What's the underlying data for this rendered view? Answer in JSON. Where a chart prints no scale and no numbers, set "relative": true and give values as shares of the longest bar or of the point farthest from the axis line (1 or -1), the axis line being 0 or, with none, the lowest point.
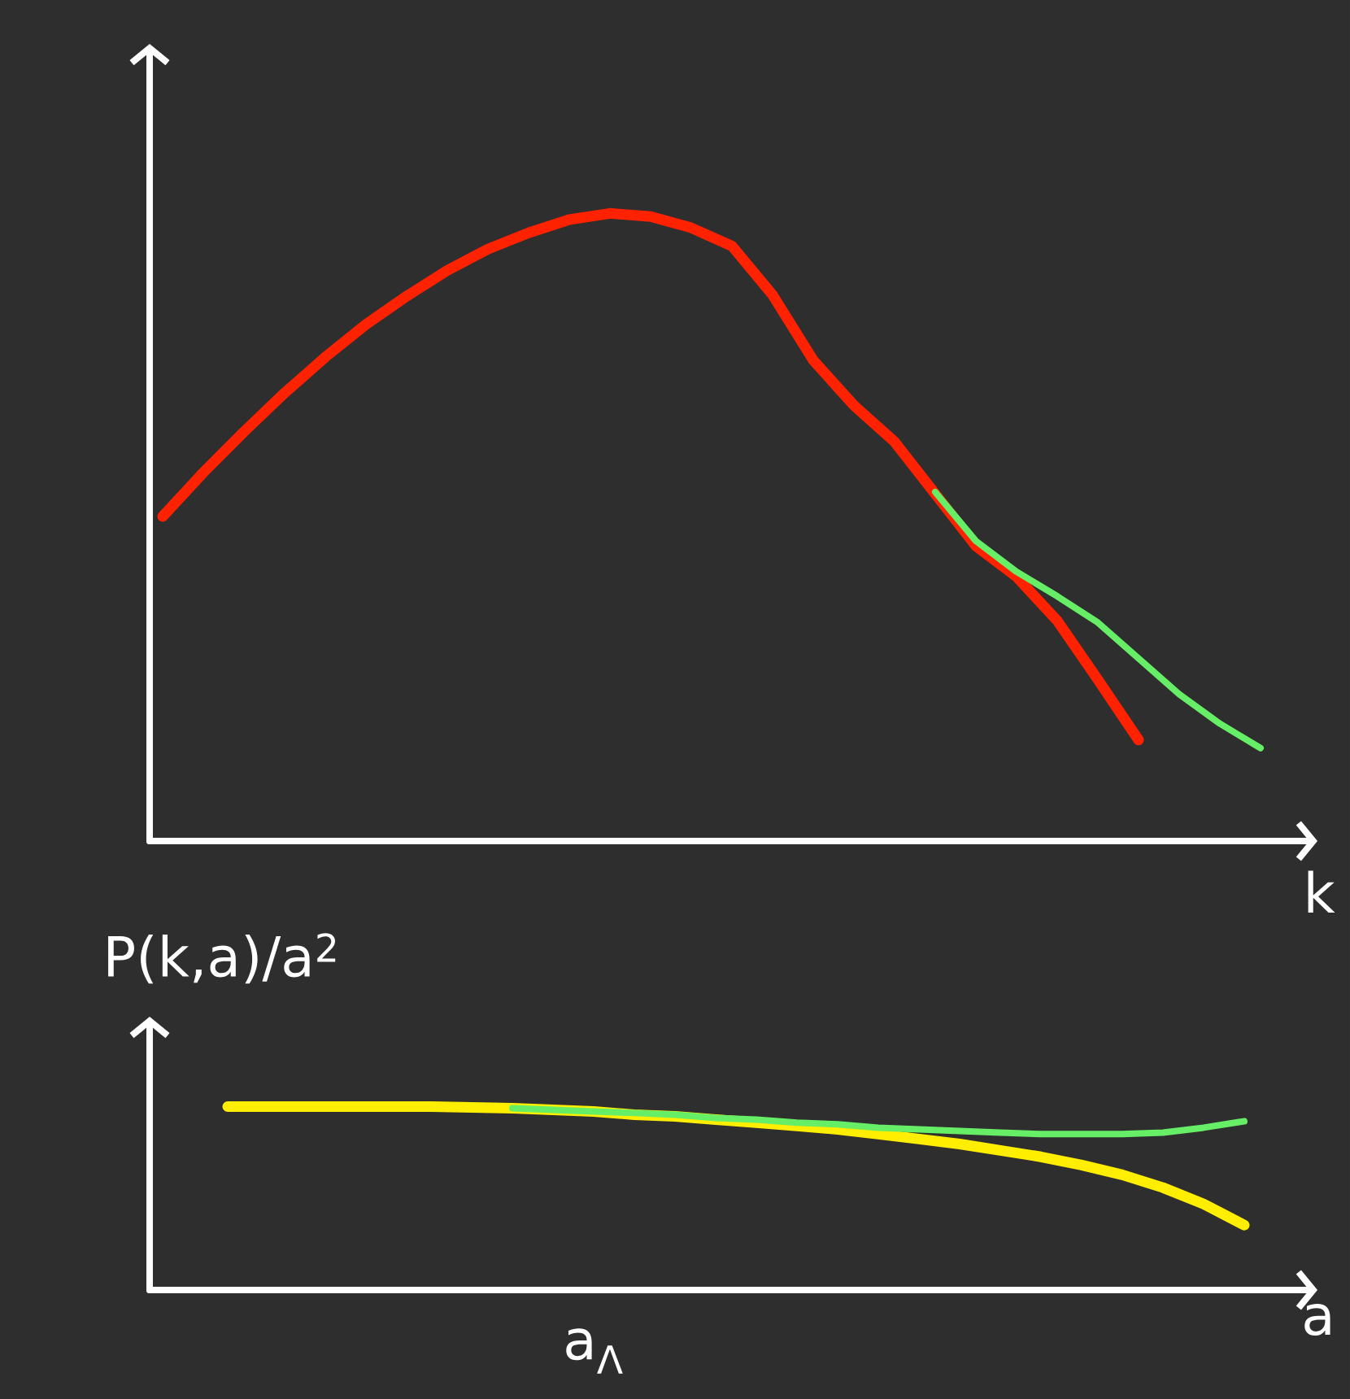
{
  "chart_data": [
    {
      "type": "line",
      "relative": true,
      "xlabel": "k",
      "categories": [
        null,
        null,
        null,
        null,
        null,
        null,
        null,
        null,
        null,
        null,
        null,
        null,
        null,
        null,
        null,
        null,
        null,
        null,
        null,
        null,
        null,
        null,
        null,
        null,
        null,
        null,
        null,
        null,
        null
      ],
      "series": [
        {
          "color": "#ff2200",
          "values": [
            0.517,
            0.587,
            0.652,
            0.714,
            0.771,
            0.823,
            0.868,
            0.909,
            0.943,
            0.969,
            0.99,
            1,
            0.995,
            0.977,
            0.948,
            0.87,
            0.766,
            0.694,
            0.636,
            0.553,
            0.47,
            0.421,
            0.351,
            0.257,
            0.161,
            null,
            null,
            null,
            null
          ]
        },
        {
          "color": "#66ee66",
          "values": [
            null,
            null,
            null,
            null,
            null,
            null,
            null,
            null,
            null,
            null,
            null,
            null,
            null,
            null,
            null,
            null,
            null,
            null,
            null,
            0.556,
            0.478,
            0.429,
            0.39,
            0.348,
            0.291,
            0.234,
            0.187,
            0.148,
            null
          ]
        }
      ]
    },
    {
      "type": "line",
      "relative": true,
      "xlabel": "a",
      "ylabel": "P(k,a)/a$^{2}$",
      "annotations": [
        "a$_{Λ}$"
      ],
      "categories": [
        null,
        null,
        null,
        null,
        null,
        null,
        null,
        null,
        null,
        null,
        null,
        null,
        null,
        null,
        null,
        null,
        null,
        null,
        null,
        null,
        null,
        null,
        null,
        null,
        null,
        null
      ],
      "series": [
        {
          "color": "#ffee00",
          "values": [
            1,
            1,
            1,
            1,
            1,
            1,
            0.996,
            0.991,
            0.982,
            0.973,
            0.956,
            0.947,
            0.929,
            0.912,
            0.894,
            0.876,
            0.85,
            0.823,
            0.796,
            0.761,
            0.726,
            0.681,
            0.628,
            0.558,
            0.469,
            0.354
          ]
        },
        {
          "color": "#66ee66",
          "values": [
            null,
            null,
            null,
            null,
            null,
            null,
            null,
            0.991,
            0.982,
            0.973,
            0.965,
            0.956,
            0.938,
            0.929,
            0.912,
            0.903,
            0.885,
            0.876,
            0.867,
            0.858,
            0.85,
            0.85,
            0.85,
            0.858,
            0.885,
            0.92
          ]
        }
      ]
    }
  ]
}
